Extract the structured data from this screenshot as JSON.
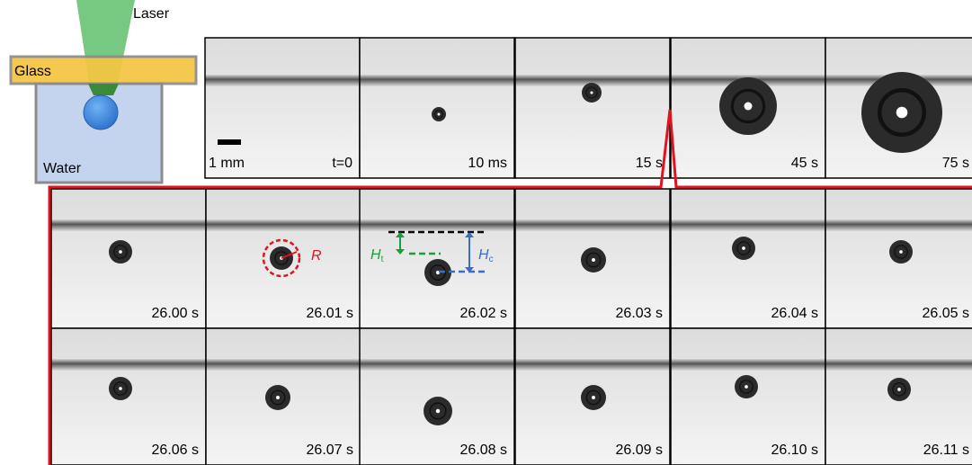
{
  "schematic": {
    "laser": "Laser",
    "glass": "Glass",
    "water": "Water"
  },
  "top_row": {
    "scale_bar": "1 mm",
    "labels": [
      "t=0",
      "10 ms",
      "15 s",
      "45 s",
      "75 s"
    ]
  },
  "middle_row": {
    "labels": [
      "26.00 s",
      "26.01 s",
      "26.02 s",
      "26.03 s",
      "26.04 s",
      "26.05 s"
    ]
  },
  "bottom_row": {
    "labels": [
      "26.06 s",
      "26.07 s",
      "26.08 s",
      "26.09 s",
      "26.10 s",
      "26.11 s"
    ]
  },
  "annotations": {
    "radius": "R",
    "ht": {
      "symbol": "H",
      "subscript": "t"
    },
    "hc": {
      "symbol": "H",
      "subscript": "c"
    }
  }
}
